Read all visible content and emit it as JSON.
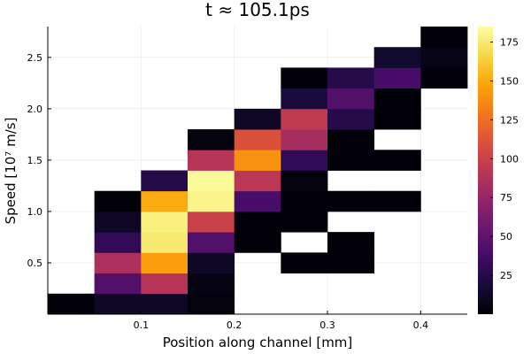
{
  "chart_data": {
    "type": "heatmap",
    "title": "t ≈ 105.1ps",
    "xlabel": "Position along channel [mm]",
    "ylabel": "Speed [10⁷ m/s]",
    "xlim": [
      0.0,
      0.45
    ],
    "ylim": [
      0.0,
      2.8
    ],
    "x_ticks": [
      0.1,
      0.2,
      0.3,
      0.4
    ],
    "y_ticks": [
      0.5,
      1.0,
      1.5,
      2.0,
      2.5
    ],
    "x_tick_labels": [
      "0.1",
      "0.2",
      "0.3",
      "0.4"
    ],
    "y_tick_labels": [
      "0.5",
      "1.0",
      "1.5",
      "2.0",
      "2.5"
    ],
    "x_bin_width": 0.05,
    "y_bin_height": 0.2,
    "colorbar_range": [
      0,
      185
    ],
    "colorbar_ticks": [
      25,
      50,
      75,
      100,
      125,
      150,
      175
    ],
    "colorbar_tick_labels": [
      "25",
      "50",
      "75",
      "100",
      "125",
      "150",
      "175"
    ],
    "colormap": "inferno",
    "grid": true,
    "cells": [
      {
        "x": 0.0,
        "y": 0.0,
        "value": 2
      },
      {
        "x": 0.05,
        "y": 0.0,
        "value": 12
      },
      {
        "x": 0.1,
        "y": 0.0,
        "value": 12
      },
      {
        "x": 0.15,
        "y": 0.0,
        "value": 3
      },
      {
        "x": 0.05,
        "y": 0.2,
        "value": 45
      },
      {
        "x": 0.1,
        "y": 0.2,
        "value": 90
      },
      {
        "x": 0.15,
        "y": 0.2,
        "value": 5
      },
      {
        "x": 0.05,
        "y": 0.4,
        "value": 85
      },
      {
        "x": 0.1,
        "y": 0.4,
        "value": 145
      },
      {
        "x": 0.15,
        "y": 0.4,
        "value": 12
      },
      {
        "x": 0.25,
        "y": 0.4,
        "value": 2
      },
      {
        "x": 0.3,
        "y": 0.4,
        "value": 2
      },
      {
        "x": 0.05,
        "y": 0.6,
        "value": 30
      },
      {
        "x": 0.1,
        "y": 0.6,
        "value": 175
      },
      {
        "x": 0.15,
        "y": 0.6,
        "value": 45
      },
      {
        "x": 0.2,
        "y": 0.6,
        "value": 2
      },
      {
        "x": 0.3,
        "y": 0.6,
        "value": 2
      },
      {
        "x": 0.05,
        "y": 0.8,
        "value": 12
      },
      {
        "x": 0.1,
        "y": 0.8,
        "value": 178
      },
      {
        "x": 0.15,
        "y": 0.8,
        "value": 100
      },
      {
        "x": 0.2,
        "y": 0.8,
        "value": 2
      },
      {
        "x": 0.25,
        "y": 0.8,
        "value": 2
      },
      {
        "x": 0.05,
        "y": 1.0,
        "value": 2
      },
      {
        "x": 0.1,
        "y": 1.0,
        "value": 150
      },
      {
        "x": 0.15,
        "y": 1.0,
        "value": 180
      },
      {
        "x": 0.2,
        "y": 1.0,
        "value": 40
      },
      {
        "x": 0.25,
        "y": 1.0,
        "value": 2
      },
      {
        "x": 0.3,
        "y": 1.0,
        "value": 2
      },
      {
        "x": 0.35,
        "y": 1.0,
        "value": 2
      },
      {
        "x": 0.1,
        "y": 1.2,
        "value": 25
      },
      {
        "x": 0.15,
        "y": 1.2,
        "value": 183
      },
      {
        "x": 0.2,
        "y": 1.2,
        "value": 92
      },
      {
        "x": 0.25,
        "y": 1.2,
        "value": 3
      },
      {
        "x": 0.15,
        "y": 1.4,
        "value": 90
      },
      {
        "x": 0.2,
        "y": 1.4,
        "value": 140
      },
      {
        "x": 0.25,
        "y": 1.4,
        "value": 30
      },
      {
        "x": 0.3,
        "y": 1.4,
        "value": 2
      },
      {
        "x": 0.35,
        "y": 1.4,
        "value": 2
      },
      {
        "x": 0.15,
        "y": 1.6,
        "value": 3
      },
      {
        "x": 0.2,
        "y": 1.6,
        "value": 110
      },
      {
        "x": 0.25,
        "y": 1.6,
        "value": 82
      },
      {
        "x": 0.3,
        "y": 1.6,
        "value": 2
      },
      {
        "x": 0.2,
        "y": 1.8,
        "value": 12
      },
      {
        "x": 0.25,
        "y": 1.8,
        "value": 95
      },
      {
        "x": 0.3,
        "y": 1.8,
        "value": 25
      },
      {
        "x": 0.35,
        "y": 1.8,
        "value": 2
      },
      {
        "x": 0.25,
        "y": 2.0,
        "value": 20
      },
      {
        "x": 0.3,
        "y": 2.0,
        "value": 45
      },
      {
        "x": 0.35,
        "y": 2.0,
        "value": 2
      },
      {
        "x": 0.25,
        "y": 2.2,
        "value": 2
      },
      {
        "x": 0.3,
        "y": 2.2,
        "value": 25
      },
      {
        "x": 0.35,
        "y": 2.2,
        "value": 40
      },
      {
        "x": 0.4,
        "y": 2.2,
        "value": 2
      },
      {
        "x": 0.35,
        "y": 2.4,
        "value": 15
      },
      {
        "x": 0.4,
        "y": 2.4,
        "value": 6
      },
      {
        "x": 0.4,
        "y": 2.6,
        "value": 2
      }
    ]
  }
}
